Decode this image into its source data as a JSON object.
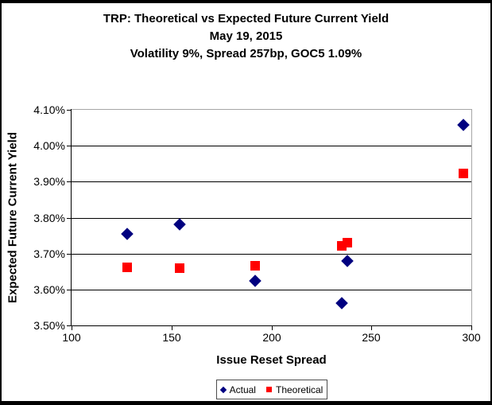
{
  "title": {
    "line1": "TRP: Theoretical vs Expected Future Current Yield",
    "line2": "May 19, 2015",
    "line3": "Volatility 9%, Spread 257bp, GOC5 1.09%"
  },
  "chart_data": {
    "type": "scatter",
    "title": "TRP: Theoretical vs Expected Future Current Yield",
    "subtitle_date": "May 19, 2015",
    "subtitle_params": "Volatility 9%, Spread 257bp, GOC5 1.09%",
    "xlabel": "Issue Reset Spread",
    "ylabel": "Expected Future Current Yield",
    "xlim": [
      100,
      300
    ],
    "ylim": [
      3.5,
      4.1
    ],
    "x_ticks": [
      100,
      150,
      200,
      250,
      300
    ],
    "y_ticks": [
      {
        "value": 4.1,
        "label": "4.10%"
      },
      {
        "value": 4.0,
        "label": "4.00%"
      },
      {
        "value": 3.9,
        "label": "3.90%"
      },
      {
        "value": 3.8,
        "label": "3.80%"
      },
      {
        "value": 3.7,
        "label": "3.70%"
      },
      {
        "value": 3.6,
        "label": "3.60%"
      },
      {
        "value": 3.5,
        "label": "3.50%"
      }
    ],
    "grid": "horizontal-only",
    "legend_position": "bottom",
    "series": [
      {
        "name": "Actual",
        "marker": "diamond",
        "color": "#000080",
        "points": [
          {
            "x": 128,
            "y": 3.755
          },
          {
            "x": 154,
            "y": 3.782
          },
          {
            "x": 192,
            "y": 3.624
          },
          {
            "x": 235,
            "y": 3.563
          },
          {
            "x": 238,
            "y": 3.679
          },
          {
            "x": 296,
            "y": 4.058
          }
        ]
      },
      {
        "name": "Theoretical",
        "marker": "square",
        "color": "#FF0000",
        "points": [
          {
            "x": 128,
            "y": 3.661
          },
          {
            "x": 154,
            "y": 3.66
          },
          {
            "x": 192,
            "y": 3.666
          },
          {
            "x": 235,
            "y": 3.722
          },
          {
            "x": 238,
            "y": 3.731
          },
          {
            "x": 296,
            "y": 3.922
          }
        ]
      }
    ]
  },
  "legend": {
    "items": [
      {
        "label": "Actual",
        "marker": "diamond",
        "color": "#000080"
      },
      {
        "label": "Theoretical",
        "marker": "square",
        "color": "#FF0000"
      }
    ]
  }
}
